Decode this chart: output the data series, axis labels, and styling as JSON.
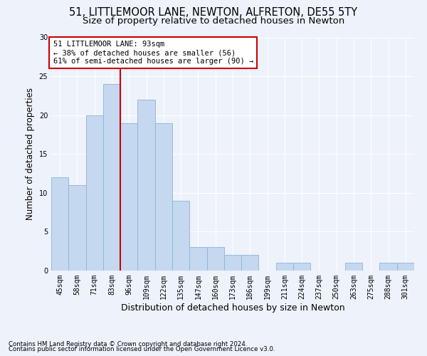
{
  "title1": "51, LITTLEMOOR LANE, NEWTON, ALFRETON, DE55 5TY",
  "title2": "Size of property relative to detached houses in Newton",
  "xlabel": "Distribution of detached houses by size in Newton",
  "ylabel": "Number of detached properties",
  "footer1": "Contains HM Land Registry data © Crown copyright and database right 2024.",
  "footer2": "Contains public sector information licensed under the Open Government Licence v3.0.",
  "categories": [
    "45sqm",
    "58sqm",
    "71sqm",
    "83sqm",
    "96sqm",
    "109sqm",
    "122sqm",
    "135sqm",
    "147sqm",
    "160sqm",
    "173sqm",
    "186sqm",
    "199sqm",
    "211sqm",
    "224sqm",
    "237sqm",
    "250sqm",
    "263sqm",
    "275sqm",
    "288sqm",
    "301sqm"
  ],
  "values": [
    12,
    11,
    20,
    24,
    19,
    22,
    19,
    9,
    3,
    3,
    2,
    2,
    0,
    1,
    1,
    0,
    0,
    1,
    0,
    1,
    1
  ],
  "bar_color": "#c5d8f0",
  "bar_edge_color": "#8ab4d8",
  "redline_index": 3.5,
  "annotation_title": "51 LITTLEMOOR LANE: 93sqm",
  "annotation_line1": "← 38% of detached houses are smaller (56)",
  "annotation_line2": "61% of semi-detached houses are larger (90) →",
  "ylim": [
    0,
    30
  ],
  "yticks": [
    0,
    5,
    10,
    15,
    20,
    25,
    30
  ],
  "bg_color": "#eef2fb",
  "grid_color": "#ffffff",
  "title1_fontsize": 10.5,
  "title2_fontsize": 9.5,
  "annotation_box_facecolor": "#ffffff",
  "annotation_box_edgecolor": "#cc0000",
  "redline_color": "#cc0000",
  "tick_fontsize": 7,
  "ylabel_fontsize": 8.5,
  "xlabel_fontsize": 9
}
